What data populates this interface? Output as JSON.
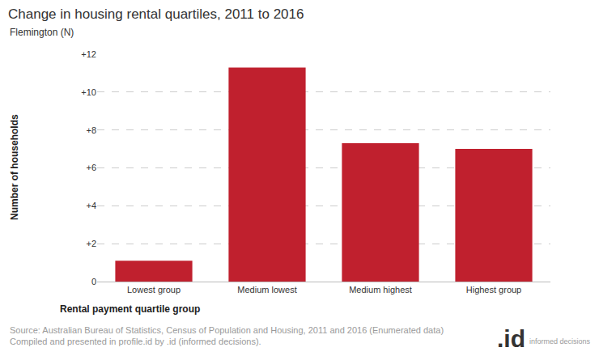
{
  "chart_data": {
    "type": "bar",
    "title": "Change in housing rental quartiles, 2011 to 2016",
    "subtitle": "Flemington (N)",
    "x_label": "Rental payment quartile group",
    "y_label": "Number of households",
    "categories": [
      "Lowest group",
      "Medium lowest",
      "Medium highest",
      "Highest group"
    ],
    "values": [
      1.1,
      11.3,
      7.3,
      7.0
    ],
    "color": "#c0202e",
    "ylim": [
      0,
      12
    ],
    "yticks": [
      0,
      {
        "value": 2,
        "label": "+2"
      },
      {
        "value": 4,
        "label": "+4"
      },
      {
        "value": 6,
        "label": "+6"
      },
      {
        "value": 8,
        "label": "+8"
      },
      {
        "value": 10,
        "label": "+10"
      },
      {
        "value": 12,
        "label": "+12"
      }
    ],
    "grid": true,
    "annotations": [
      "Source: Australian Bureau of Statistics, Census of Population and Housing, 2011 and 2016 (Enumerated data)",
      "Compiled and presented in profile.id by .id (informed decisions).",
      ".id",
      "informed decisions"
    ]
  }
}
